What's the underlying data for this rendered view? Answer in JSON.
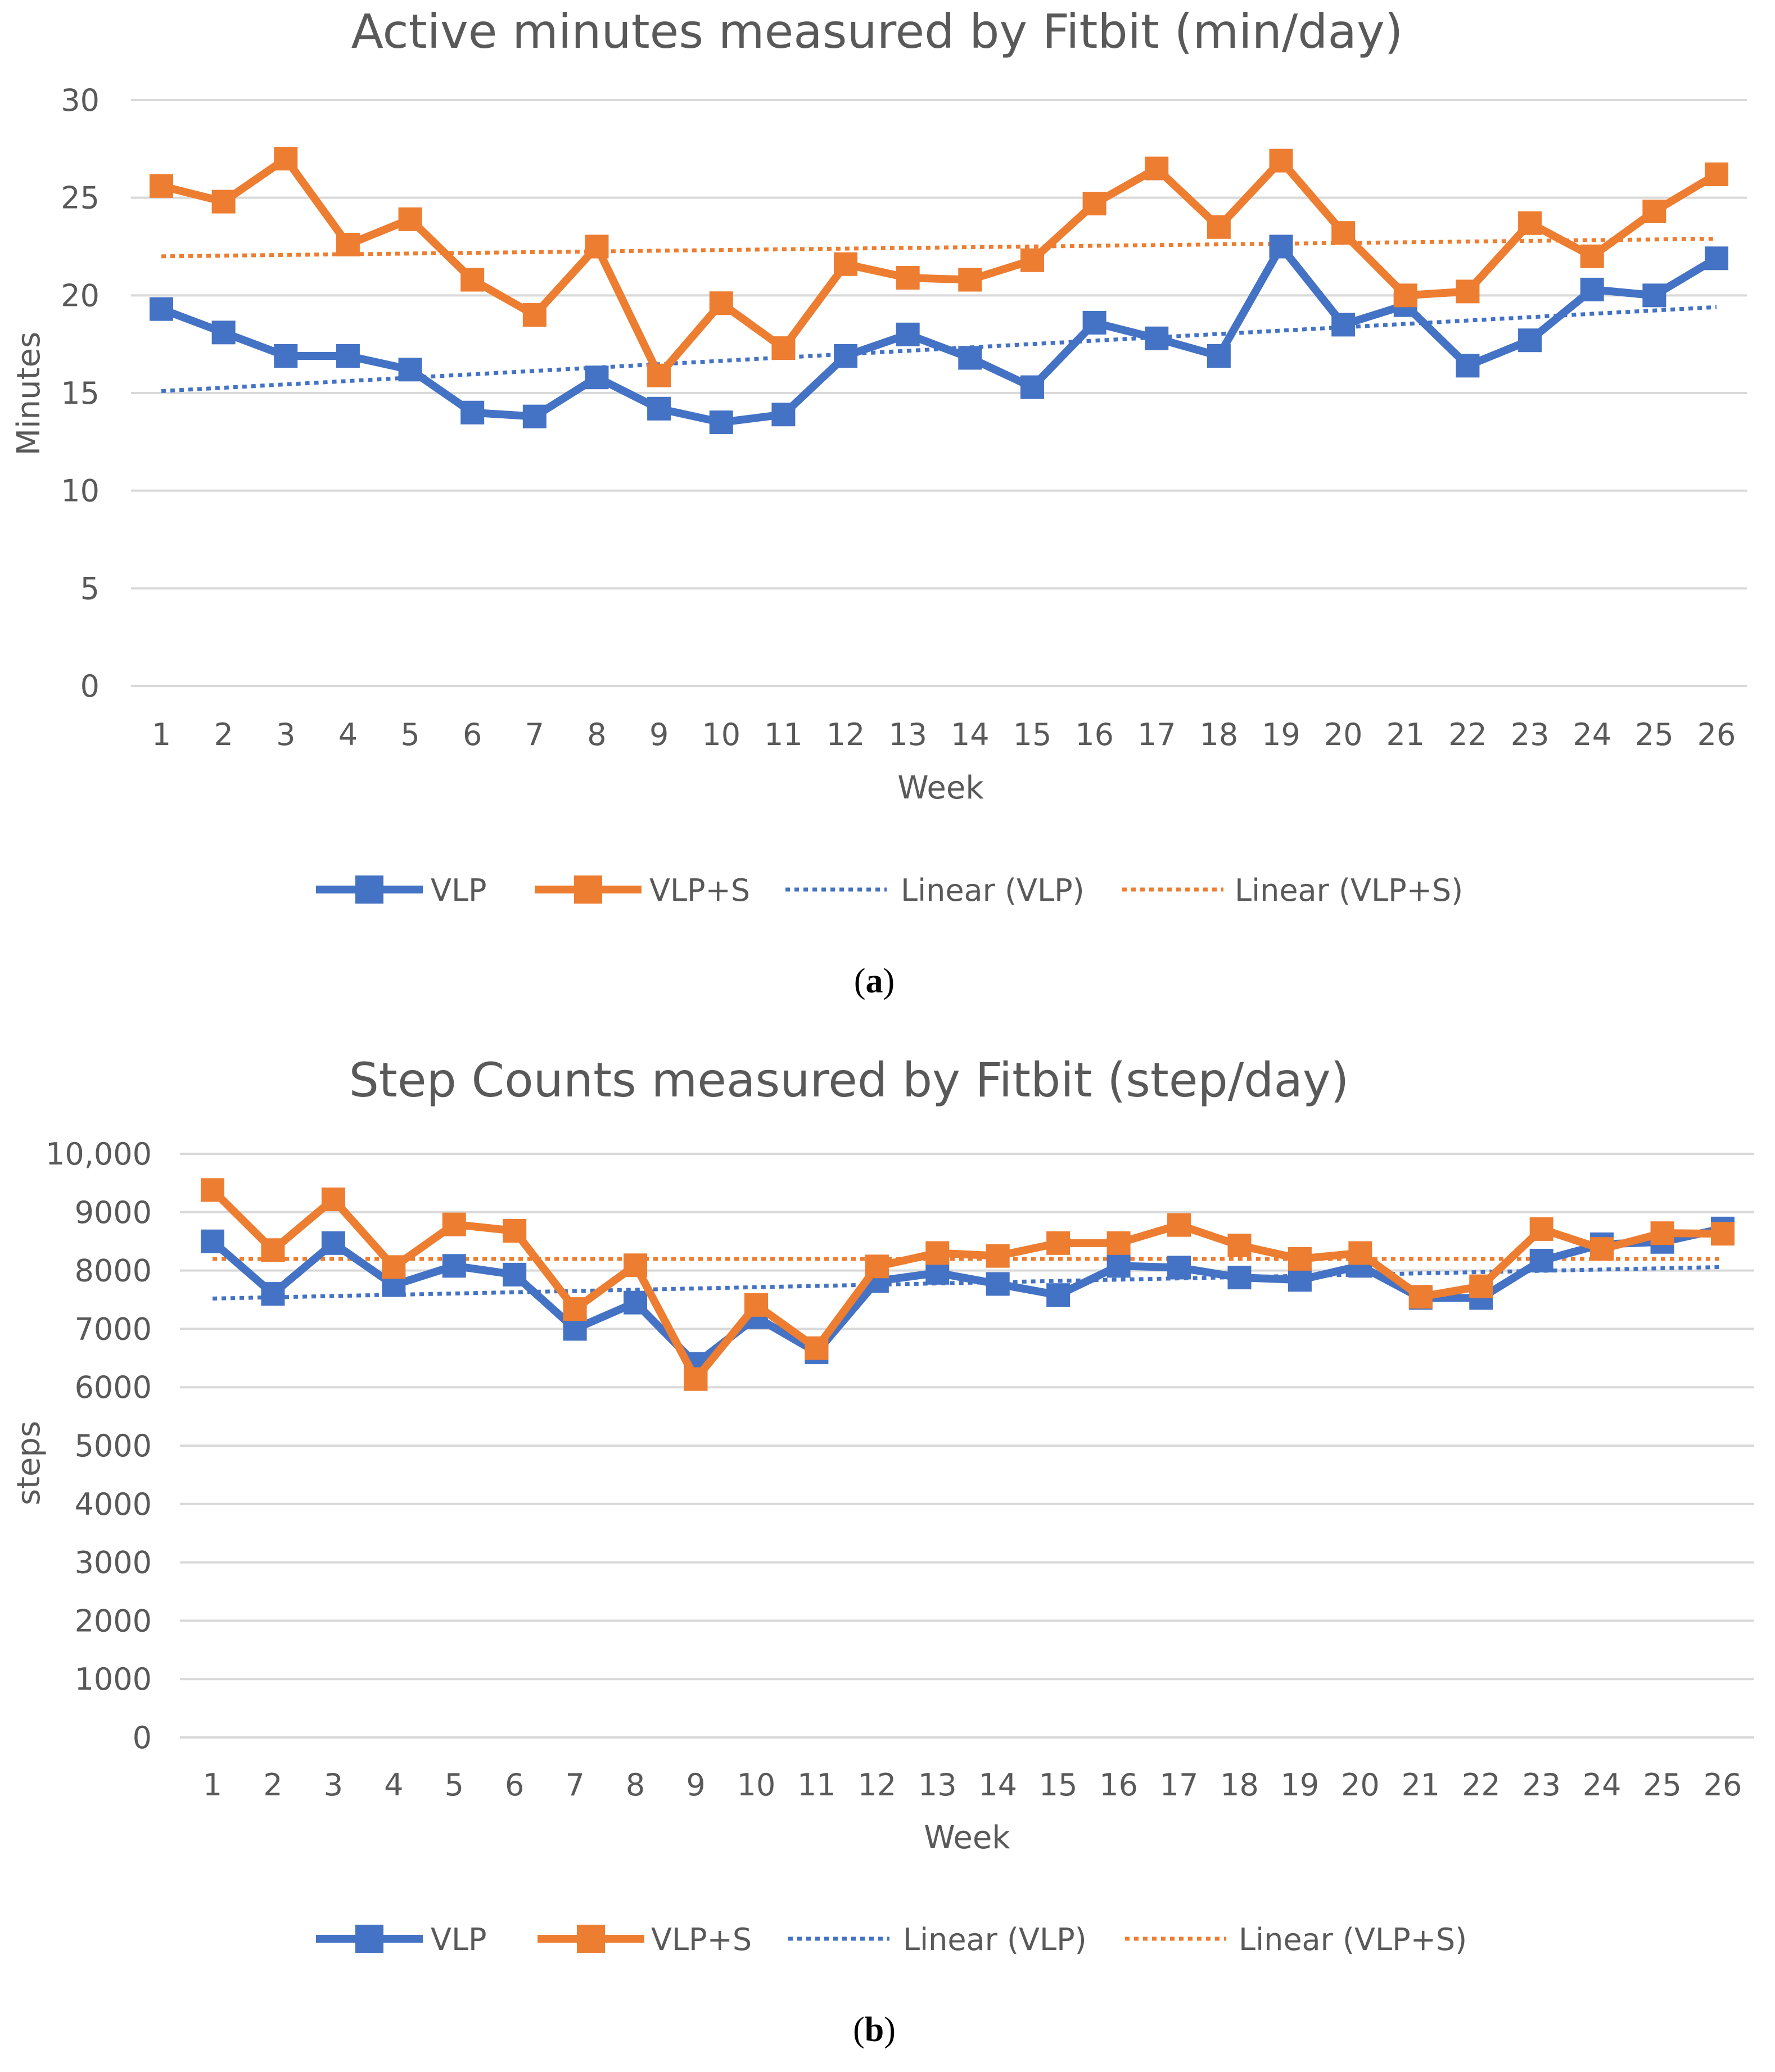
{
  "colors": {
    "vlp": "#4472C4",
    "vlp_s": "#ED7D31",
    "grid": "#D9D9D9",
    "text": "#595959"
  },
  "legend": {
    "vlp": "VLP",
    "vlp_s": "VLP+S",
    "linear_vlp": "Linear (VLP)",
    "linear_vlp_s": "Linear (VLP+S)"
  },
  "captions": {
    "a_open": "(",
    "a_letter": "a",
    "a_close": ")",
    "b_open": "(",
    "b_letter": "b",
    "b_close": ")"
  },
  "chart_data": [
    {
      "id": "a",
      "type": "line",
      "title": "Active minutes measured by Fitbit (min/day)",
      "xlabel": "Week",
      "ylabel": "Minutes",
      "ylim": [
        0,
        30
      ],
      "yticks": [
        0,
        5,
        10,
        15,
        20,
        25,
        30
      ],
      "ytick_labels": [
        "0",
        "5",
        "10",
        "15",
        "20",
        "25",
        "30"
      ],
      "categories": [
        "1",
        "2",
        "3",
        "4",
        "5",
        "6",
        "7",
        "8",
        "9",
        "10",
        "11",
        "12",
        "13",
        "14",
        "15",
        "16",
        "17",
        "18",
        "19",
        "20",
        "21",
        "22",
        "23",
        "24",
        "25",
        "26"
      ],
      "series": [
        {
          "name": "VLP",
          "color": "#4472C4",
          "values": [
            19.3,
            18.1,
            16.9,
            16.9,
            16.2,
            14.0,
            13.8,
            15.8,
            14.2,
            13.5,
            13.9,
            16.9,
            18.0,
            16.8,
            15.3,
            18.6,
            17.8,
            16.9,
            22.5,
            18.5,
            19.5,
            16.4,
            17.7,
            20.3,
            20.0,
            21.9
          ]
        },
        {
          "name": "VLP+S",
          "color": "#ED7D31",
          "values": [
            25.6,
            24.8,
            27.0,
            22.6,
            23.9,
            20.8,
            19.0,
            22.5,
            15.9,
            19.6,
            17.3,
            21.6,
            20.9,
            20.8,
            21.8,
            24.7,
            26.5,
            23.5,
            26.9,
            23.2,
            20.0,
            20.2,
            23.7,
            22.0,
            24.3,
            26.2
          ]
        }
      ],
      "trendlines": [
        {
          "name": "Linear (VLP)",
          "color": "#4472C4",
          "start": 15.1,
          "end": 19.4
        },
        {
          "name": "Linear (VLP+S)",
          "color": "#ED7D31",
          "start": 22.0,
          "end": 22.9
        }
      ]
    },
    {
      "id": "b",
      "type": "line",
      "title": "Step Counts measured by Fitbit (step/day)",
      "xlabel": "Week",
      "ylabel": "steps",
      "ylim": [
        0,
        10000
      ],
      "yticks": [
        0,
        1000,
        2000,
        3000,
        4000,
        5000,
        6000,
        7000,
        8000,
        9000,
        10000
      ],
      "ytick_labels": [
        "0",
        "1000",
        "2000",
        "3000",
        "4000",
        "5000",
        "6000",
        "7000",
        "8000",
        "9000",
        "10,000"
      ],
      "categories": [
        "1",
        "2",
        "3",
        "4",
        "5",
        "6",
        "7",
        "8",
        "9",
        "10",
        "11",
        "12",
        "13",
        "14",
        "15",
        "16",
        "17",
        "18",
        "19",
        "20",
        "21",
        "22",
        "23",
        "24",
        "25",
        "26"
      ],
      "series": [
        {
          "name": "VLP",
          "color": "#4472C4",
          "values": [
            8500,
            7600,
            8470,
            7750,
            8080,
            7930,
            7000,
            7450,
            6400,
            7200,
            6600,
            7820,
            7960,
            7770,
            7580,
            8080,
            8050,
            7880,
            7840,
            8080,
            7530,
            7530,
            8170,
            8450,
            8490,
            8720
          ]
        },
        {
          "name": "VLP+S",
          "color": "#ED7D31",
          "values": [
            9380,
            8350,
            9220,
            8060,
            8790,
            8680,
            7340,
            8090,
            6140,
            7410,
            6670,
            8070,
            8300,
            8250,
            8470,
            8470,
            8780,
            8430,
            8200,
            8300,
            7550,
            7730,
            8710,
            8370,
            8640,
            8630
          ]
        }
      ],
      "trendlines": [
        {
          "name": "Linear (VLP)",
          "color": "#4472C4",
          "start": 7520,
          "end": 8060
        },
        {
          "name": "Linear (VLP+S)",
          "color": "#ED7D31",
          "start": 8200,
          "end": 8200
        }
      ]
    }
  ]
}
